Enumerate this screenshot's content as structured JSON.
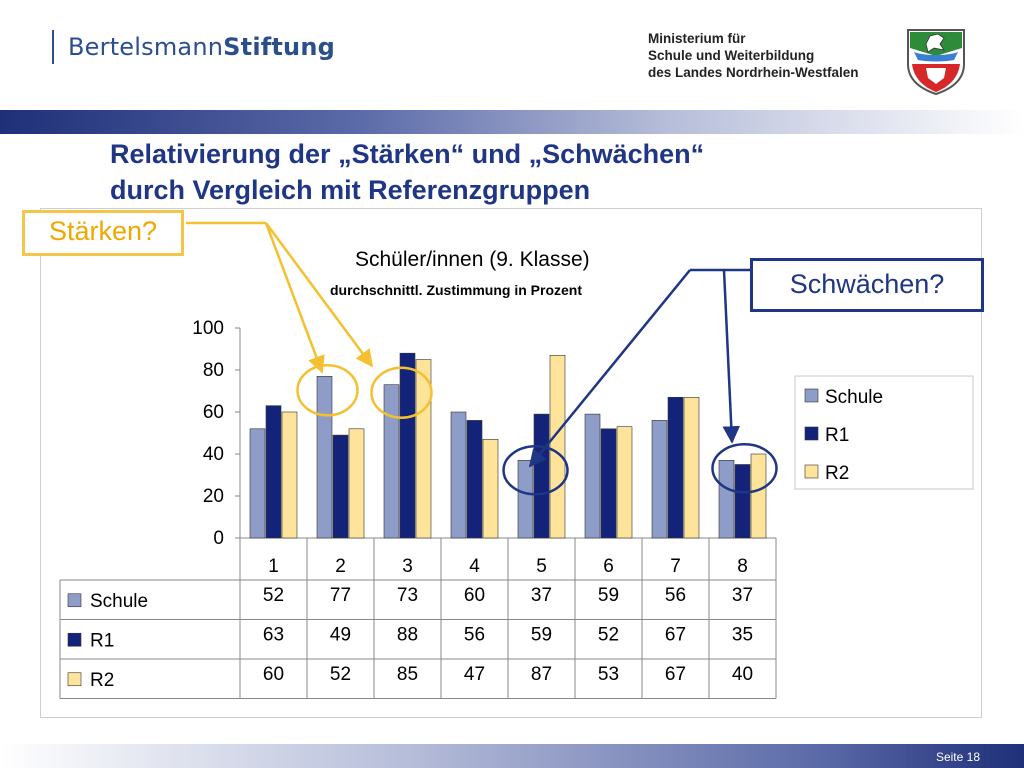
{
  "header": {
    "logo_plain": "Bertelsmann",
    "logo_bold": "Stiftung",
    "ministry_lines": [
      "Ministerium für",
      "Schule und Weiterbildung",
      "des Landes Nordrhein-Westfalen"
    ]
  },
  "slide": {
    "title_line1": "Relativierung der „Stärken“ und „Schwächen“",
    "title_line2": "durch Vergleich mit Referenzgruppen",
    "callout_strengths": "Stärken?",
    "callout_weaknesses": "Schwächen?",
    "page_label": "Seite 18"
  },
  "colors": {
    "schule": "#8e9cc8",
    "r1": "#14237a",
    "r2": "#fde49a",
    "accent_yellow": "#f5c030",
    "accent_blue": "#1f3585"
  },
  "chart_data": {
    "type": "bar",
    "title": "Schüler/innen (9. Klasse)",
    "subtitle": "durchschnittl. Zustimmung in Prozent",
    "categories": [
      "1",
      "2",
      "3",
      "4",
      "5",
      "6",
      "7",
      "8"
    ],
    "series": [
      {
        "name": "Schule",
        "values": [
          52,
          77,
          73,
          60,
          37,
          59,
          56,
          37
        ]
      },
      {
        "name": "R1",
        "values": [
          63,
          49,
          88,
          56,
          59,
          52,
          67,
          35
        ]
      },
      {
        "name": "R2",
        "values": [
          60,
          52,
          85,
          47,
          87,
          53,
          67,
          40
        ]
      }
    ],
    "ylim": [
      0,
      100
    ],
    "yticks": [
      "0",
      "20",
      "40",
      "60",
      "80",
      "100"
    ],
    "grid": false,
    "legend": "right",
    "data_table": true
  }
}
